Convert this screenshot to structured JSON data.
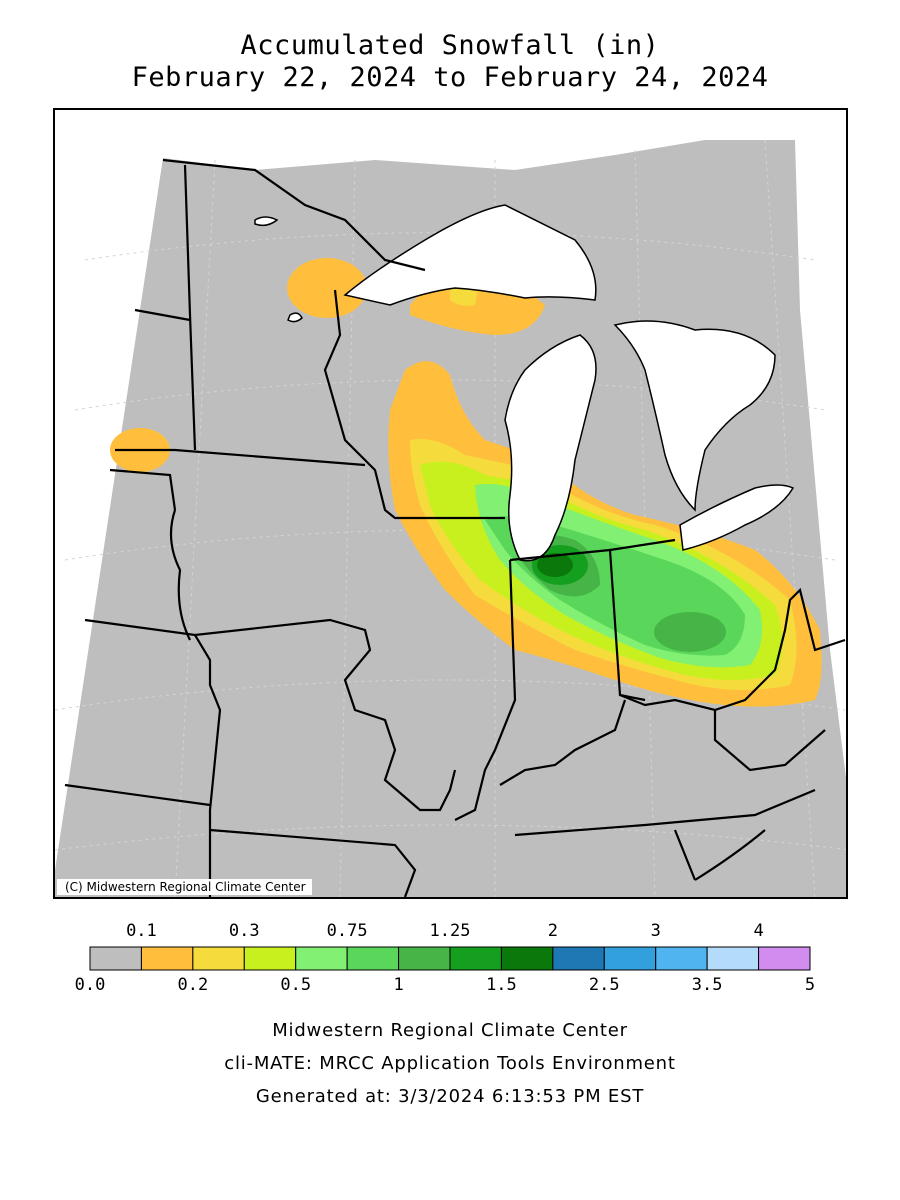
{
  "title": {
    "line1": "Accumulated Snowfall (in)",
    "line2": "February 22, 2024 to February 24, 2024"
  },
  "map": {
    "copyright": "(C) Midwestern Regional Climate Center",
    "colors": {
      "background": "#bebebe",
      "water": "#ffffff",
      "boundary": "#000000",
      "graticule": "#d6d6d6"
    }
  },
  "legend": {
    "top_labels": [
      "0.1",
      "0.3",
      "0.75",
      "1.25",
      "2",
      "3",
      "4"
    ],
    "bottom_labels": [
      "0.0",
      "0.2",
      "0.5",
      "1",
      "1.5",
      "2.5",
      "3.5",
      "5"
    ],
    "bins": [
      {
        "range": "0.0-0.1",
        "color": "#bebebe"
      },
      {
        "range": "0.1-0.2",
        "color": "#ffbe3c"
      },
      {
        "range": "0.2-0.3",
        "color": "#f5dc3c"
      },
      {
        "range": "0.3-0.5",
        "color": "#c8f01e"
      },
      {
        "range": "0.5-0.75",
        "color": "#82f072"
      },
      {
        "range": "0.75-1",
        "color": "#5ad75a"
      },
      {
        "range": "1-1.25",
        "color": "#46b446"
      },
      {
        "range": "1.25-1.5",
        "color": "#14a01e"
      },
      {
        "range": "1.5-2",
        "color": "#0a780a"
      },
      {
        "range": "2-2.5",
        "color": "#1e78b4"
      },
      {
        "range": "2.5-3",
        "color": "#32a0dc"
      },
      {
        "range": "3-3.5",
        "color": "#50b4f0"
      },
      {
        "range": "3.5-4",
        "color": "#b4dcfa"
      },
      {
        "range": "4-5",
        "color": "#d28cf0"
      }
    ]
  },
  "footer": {
    "line1": "Midwestern Regional Climate Center",
    "line2": "cli-MATE: MRCC Application Tools Environment",
    "line3": "Generated at: 3/3/2024 6:13:53 PM EST"
  }
}
